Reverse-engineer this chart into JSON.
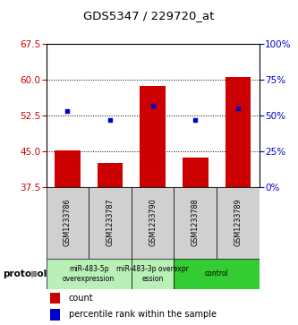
{
  "title": "GDS5347 / 229720_at",
  "samples": [
    "GSM1233786",
    "GSM1233787",
    "GSM1233790",
    "GSM1233788",
    "GSM1233789"
  ],
  "bar_bottom": 37.5,
  "bar_tops": [
    45.2,
    42.5,
    58.7,
    43.7,
    60.5
  ],
  "percentile_values": [
    53.5,
    51.5,
    54.5,
    51.5,
    54.0
  ],
  "left_ylim": [
    37.5,
    67.5
  ],
  "left_yticks": [
    37.5,
    45,
    52.5,
    60,
    67.5
  ],
  "right_ylim": [
    0,
    100
  ],
  "right_yticks": [
    0,
    25,
    50,
    75,
    100
  ],
  "right_yticklabels": [
    "0%",
    "25%",
    "50%",
    "75%",
    "100%"
  ],
  "bar_color": "#cc0000",
  "blue_color": "#0000cc",
  "left_tick_color": "#cc0000",
  "right_tick_color": "#0000cc",
  "dotted_lines": [
    45,
    52.5,
    60
  ],
  "groups": [
    {
      "label": "miR-483-5p\noverexpression",
      "start": 0,
      "end": 2,
      "color": "#b8f0b8"
    },
    {
      "label": "miR-483-3p overexpr\nession",
      "start": 2,
      "end": 3,
      "color": "#b8f0b8"
    },
    {
      "label": "control",
      "start": 3,
      "end": 5,
      "color": "#33cc33"
    }
  ],
  "protocol_label": "protocol",
  "legend_count_label": "count",
  "legend_percentile_label": "percentile rank within the sample",
  "sample_bg_color": "#d0d0d0"
}
